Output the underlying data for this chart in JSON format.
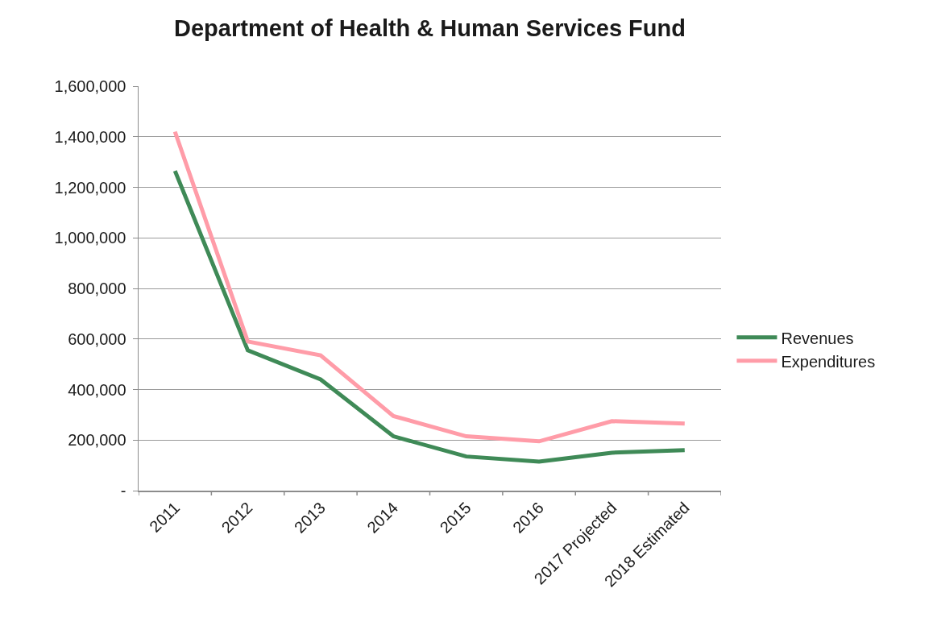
{
  "chart_data": {
    "type": "line",
    "title": "Department of Health & Human Services Fund",
    "categories": [
      "2011",
      "2012",
      "2013",
      "2014",
      "2015",
      "2016",
      "2017 Projected",
      "2018 Estimated"
    ],
    "series": [
      {
        "name": "Revenues",
        "color": "#3f8a57",
        "values": [
          1265000,
          555000,
          440000,
          215000,
          135000,
          115000,
          150000,
          160000
        ]
      },
      {
        "name": "Expenditures",
        "color": "#ff9ca8",
        "values": [
          1420000,
          590000,
          535000,
          295000,
          215000,
          195000,
          275000,
          265000
        ]
      }
    ],
    "ylim": [
      0,
      1600000
    ],
    "yticks": [
      {
        "value": 0,
        "label": "-"
      },
      {
        "value": 200000,
        "label": "200,000"
      },
      {
        "value": 400000,
        "label": "400,000"
      },
      {
        "value": 600000,
        "label": "600,000"
      },
      {
        "value": 800000,
        "label": "800,000"
      },
      {
        "value": 1000000,
        "label": "1,000,000"
      },
      {
        "value": 1200000,
        "label": "1,200,000"
      },
      {
        "value": 1400000,
        "label": "1,400,000"
      },
      {
        "value": 1600000,
        "label": "1,600,000"
      }
    ],
    "grid": "y",
    "legend": "right",
    "marker": "none",
    "line_style": "solid"
  }
}
